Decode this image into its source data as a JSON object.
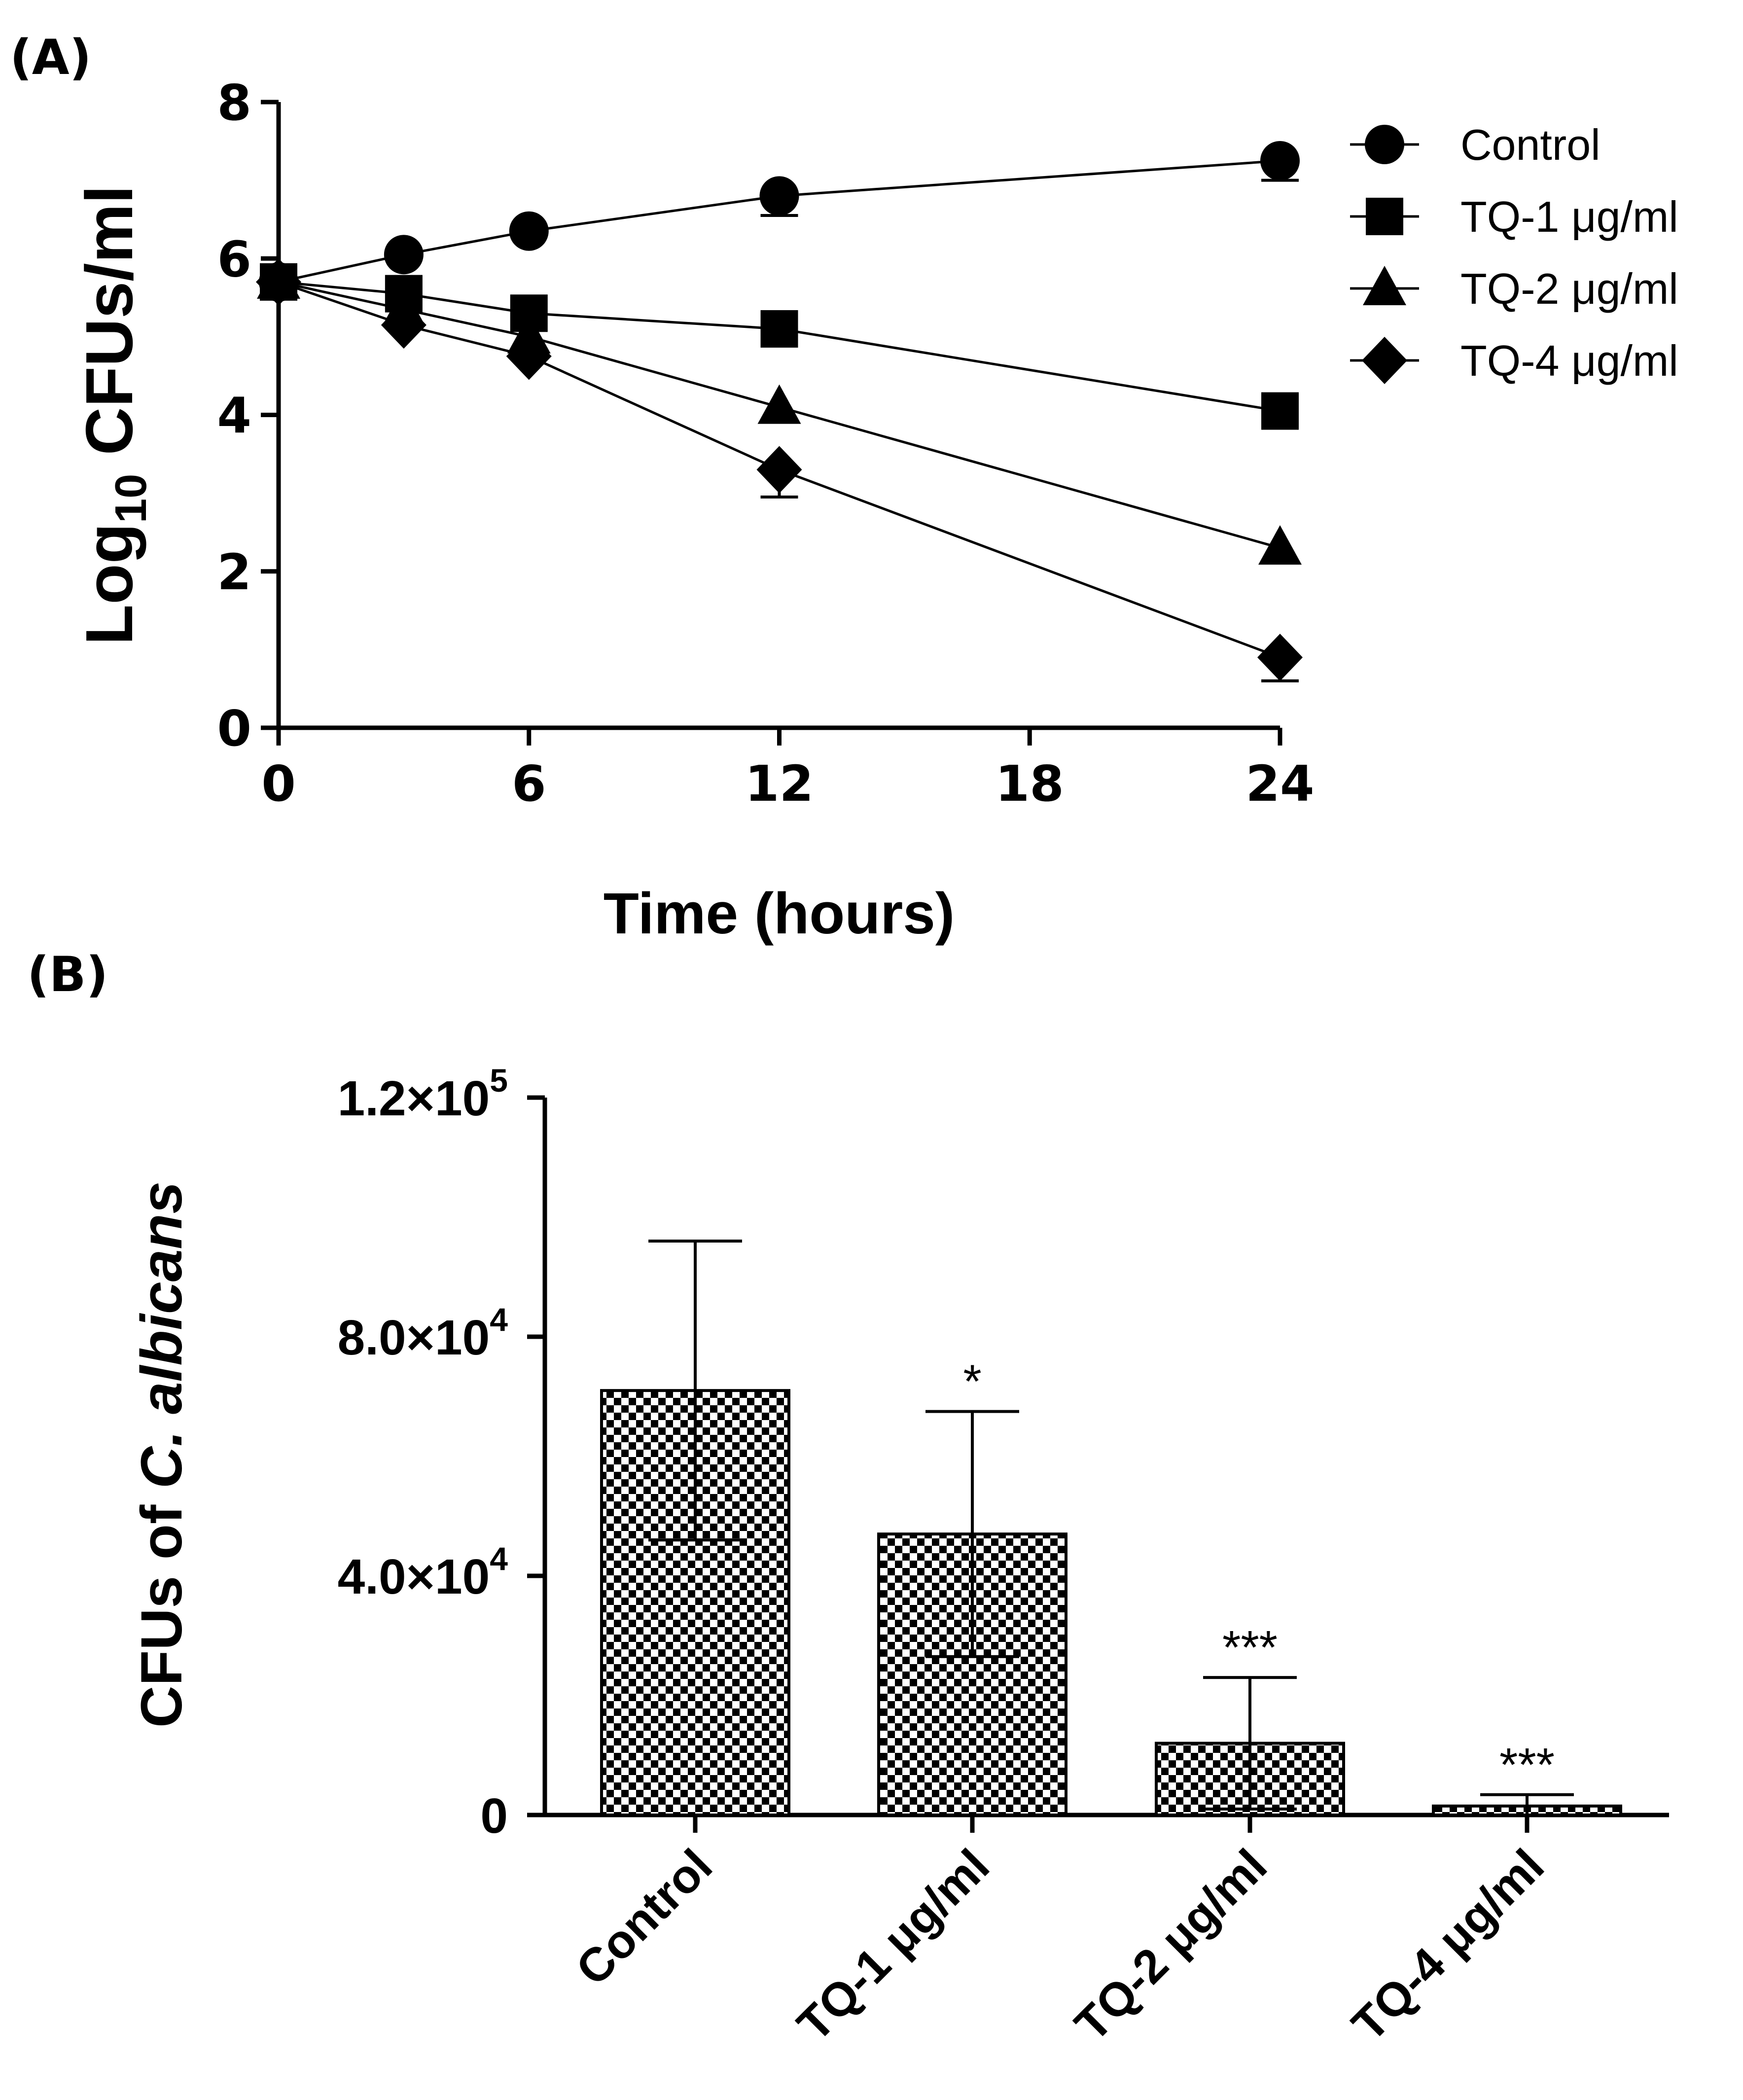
{
  "panel_a_label": "(A)",
  "panel_b_label": "(B)",
  "chart_data": [
    {
      "type": "line",
      "ylabel_main": "Log",
      "ylabel_sub": "10",
      "ylabel_rest": " CFUs/ml",
      "xlabel": "Time (hours)",
      "xlim": [
        0,
        24
      ],
      "ylim": [
        0,
        8
      ],
      "xticks": [
        "0",
        "6",
        "12",
        "18",
        "24"
      ],
      "yticks": [
        "0",
        "2",
        "4",
        "6",
        "8"
      ],
      "xtick_values": [
        0,
        6,
        12,
        18,
        24
      ],
      "ytick_values": [
        0,
        2,
        4,
        6,
        8
      ],
      "legend_position": "top-right",
      "series": [
        {
          "name": "Control",
          "marker": "circle",
          "x": [
            0,
            3,
            6,
            12,
            24
          ],
          "y": [
            5.7,
            6.05,
            6.35,
            6.8,
            7.25
          ],
          "err": [
            0,
            0,
            0,
            0.25,
            0.25
          ]
        },
        {
          "name": "TQ-1 μg/ml",
          "marker": "square",
          "x": [
            0,
            3,
            6,
            12,
            24
          ],
          "y": [
            5.7,
            5.55,
            5.3,
            5.1,
            4.05
          ],
          "err": [
            0,
            0,
            0,
            0,
            0
          ]
        },
        {
          "name": "TQ-2 μg/ml",
          "marker": "triangle",
          "x": [
            0,
            3,
            6,
            12,
            24
          ],
          "y": [
            5.7,
            5.35,
            5.0,
            4.1,
            2.3
          ],
          "err": [
            0,
            0,
            0,
            0,
            0
          ]
        },
        {
          "name": "TQ-4 μg/ml",
          "marker": "diamond",
          "x": [
            0,
            3,
            6,
            12,
            24
          ],
          "y": [
            5.7,
            5.15,
            4.75,
            3.3,
            0.9
          ],
          "err": [
            0,
            0,
            0,
            0.35,
            0.3
          ]
        }
      ]
    },
    {
      "type": "bar",
      "ylabel_prefix": "CFUs of ",
      "ylabel_italic": "C. albicans",
      "ylim": [
        0,
        120000
      ],
      "ytick_values": [
        0,
        40000,
        80000,
        120000
      ],
      "yticks": [
        {
          "mantissa": "0",
          "exponent": ""
        },
        {
          "mantissa": "4.0×10",
          "exponent": "4"
        },
        {
          "mantissa": "8.0×10",
          "exponent": "4"
        },
        {
          "mantissa": "1.2×10",
          "exponent": "5"
        }
      ],
      "categories": [
        "Control",
        "TQ-1 μg/ml",
        "TQ-2 μg/ml",
        "TQ-4 μg/ml"
      ],
      "values": [
        71000,
        47000,
        12000,
        1500
      ],
      "errors": [
        25000,
        20500,
        11000,
        1900
      ],
      "significance": [
        "",
        "*",
        "***",
        "***"
      ],
      "fill_pattern": "checkerboard"
    }
  ]
}
